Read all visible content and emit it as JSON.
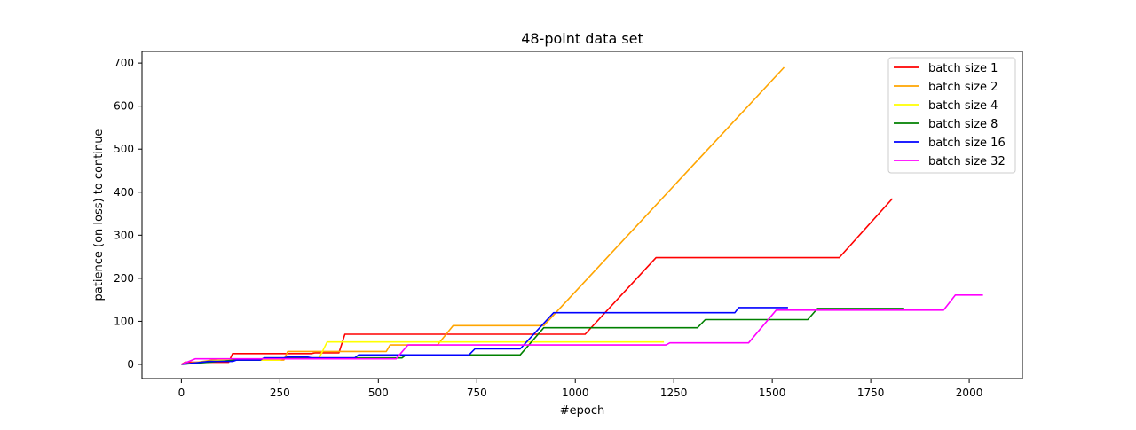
{
  "chart_data": {
    "type": "line",
    "title": "48-point data set",
    "xlabel": "#epoch",
    "ylabel": "patience (on loss) to continue",
    "xlim": [
      -100,
      2135
    ],
    "ylim": [
      -33,
      727
    ],
    "x_ticks": [
      0,
      250,
      500,
      750,
      1000,
      1250,
      1500,
      1750,
      2000
    ],
    "y_ticks": [
      0,
      100,
      200,
      300,
      400,
      500,
      600,
      700
    ],
    "grid": false,
    "legend_position": "top-right",
    "series": [
      {
        "name": "batch size 1",
        "color": "#ff0000",
        "points": [
          [
            0,
            0
          ],
          [
            10,
            5
          ],
          [
            120,
            5
          ],
          [
            130,
            25
          ],
          [
            330,
            25
          ],
          [
            340,
            27
          ],
          [
            400,
            27
          ],
          [
            415,
            70
          ],
          [
            1025,
            70
          ],
          [
            1205,
            248
          ],
          [
            1670,
            248
          ],
          [
            1805,
            385
          ]
        ]
      },
      {
        "name": "batch size 2",
        "color": "#ffa500",
        "points": [
          [
            0,
            0
          ],
          [
            80,
            10
          ],
          [
            260,
            10
          ],
          [
            270,
            30
          ],
          [
            520,
            30
          ],
          [
            530,
            45
          ],
          [
            650,
            45
          ],
          [
            690,
            90
          ],
          [
            920,
            90
          ],
          [
            1530,
            690
          ]
        ]
      },
      {
        "name": "batch size 4",
        "color": "#ffff00",
        "points": [
          [
            0,
            0
          ],
          [
            100,
            10
          ],
          [
            250,
            10
          ],
          [
            260,
            15
          ],
          [
            350,
            15
          ],
          [
            370,
            52
          ],
          [
            1225,
            52
          ]
        ]
      },
      {
        "name": "batch size 8",
        "color": "#008000",
        "points": [
          [
            0,
            0
          ],
          [
            140,
            10
          ],
          [
            200,
            10
          ],
          [
            210,
            15
          ],
          [
            560,
            15
          ],
          [
            570,
            22
          ],
          [
            860,
            22
          ],
          [
            920,
            85
          ],
          [
            1310,
            85
          ],
          [
            1330,
            104
          ],
          [
            1590,
            104
          ],
          [
            1615,
            130
          ],
          [
            1835,
            130
          ]
        ]
      },
      {
        "name": "batch size 16",
        "color": "#0000ff",
        "points": [
          [
            0,
            0
          ],
          [
            70,
            7
          ],
          [
            130,
            7
          ],
          [
            140,
            10
          ],
          [
            200,
            10
          ],
          [
            210,
            15
          ],
          [
            260,
            15
          ],
          [
            270,
            17
          ],
          [
            320,
            17
          ],
          [
            330,
            15
          ],
          [
            440,
            15
          ],
          [
            450,
            22
          ],
          [
            730,
            22
          ],
          [
            745,
            36
          ],
          [
            860,
            36
          ],
          [
            945,
            120
          ],
          [
            1405,
            120
          ],
          [
            1415,
            132
          ],
          [
            1540,
            132
          ]
        ]
      },
      {
        "name": "batch size 32",
        "color": "#ff00ff",
        "points": [
          [
            0,
            0
          ],
          [
            35,
            13
          ],
          [
            545,
            13
          ],
          [
            575,
            45
          ],
          [
            1230,
            45
          ],
          [
            1240,
            50
          ],
          [
            1440,
            50
          ],
          [
            1510,
            126
          ],
          [
            1935,
            126
          ],
          [
            1965,
            161
          ],
          [
            2035,
            161
          ]
        ]
      }
    ]
  }
}
